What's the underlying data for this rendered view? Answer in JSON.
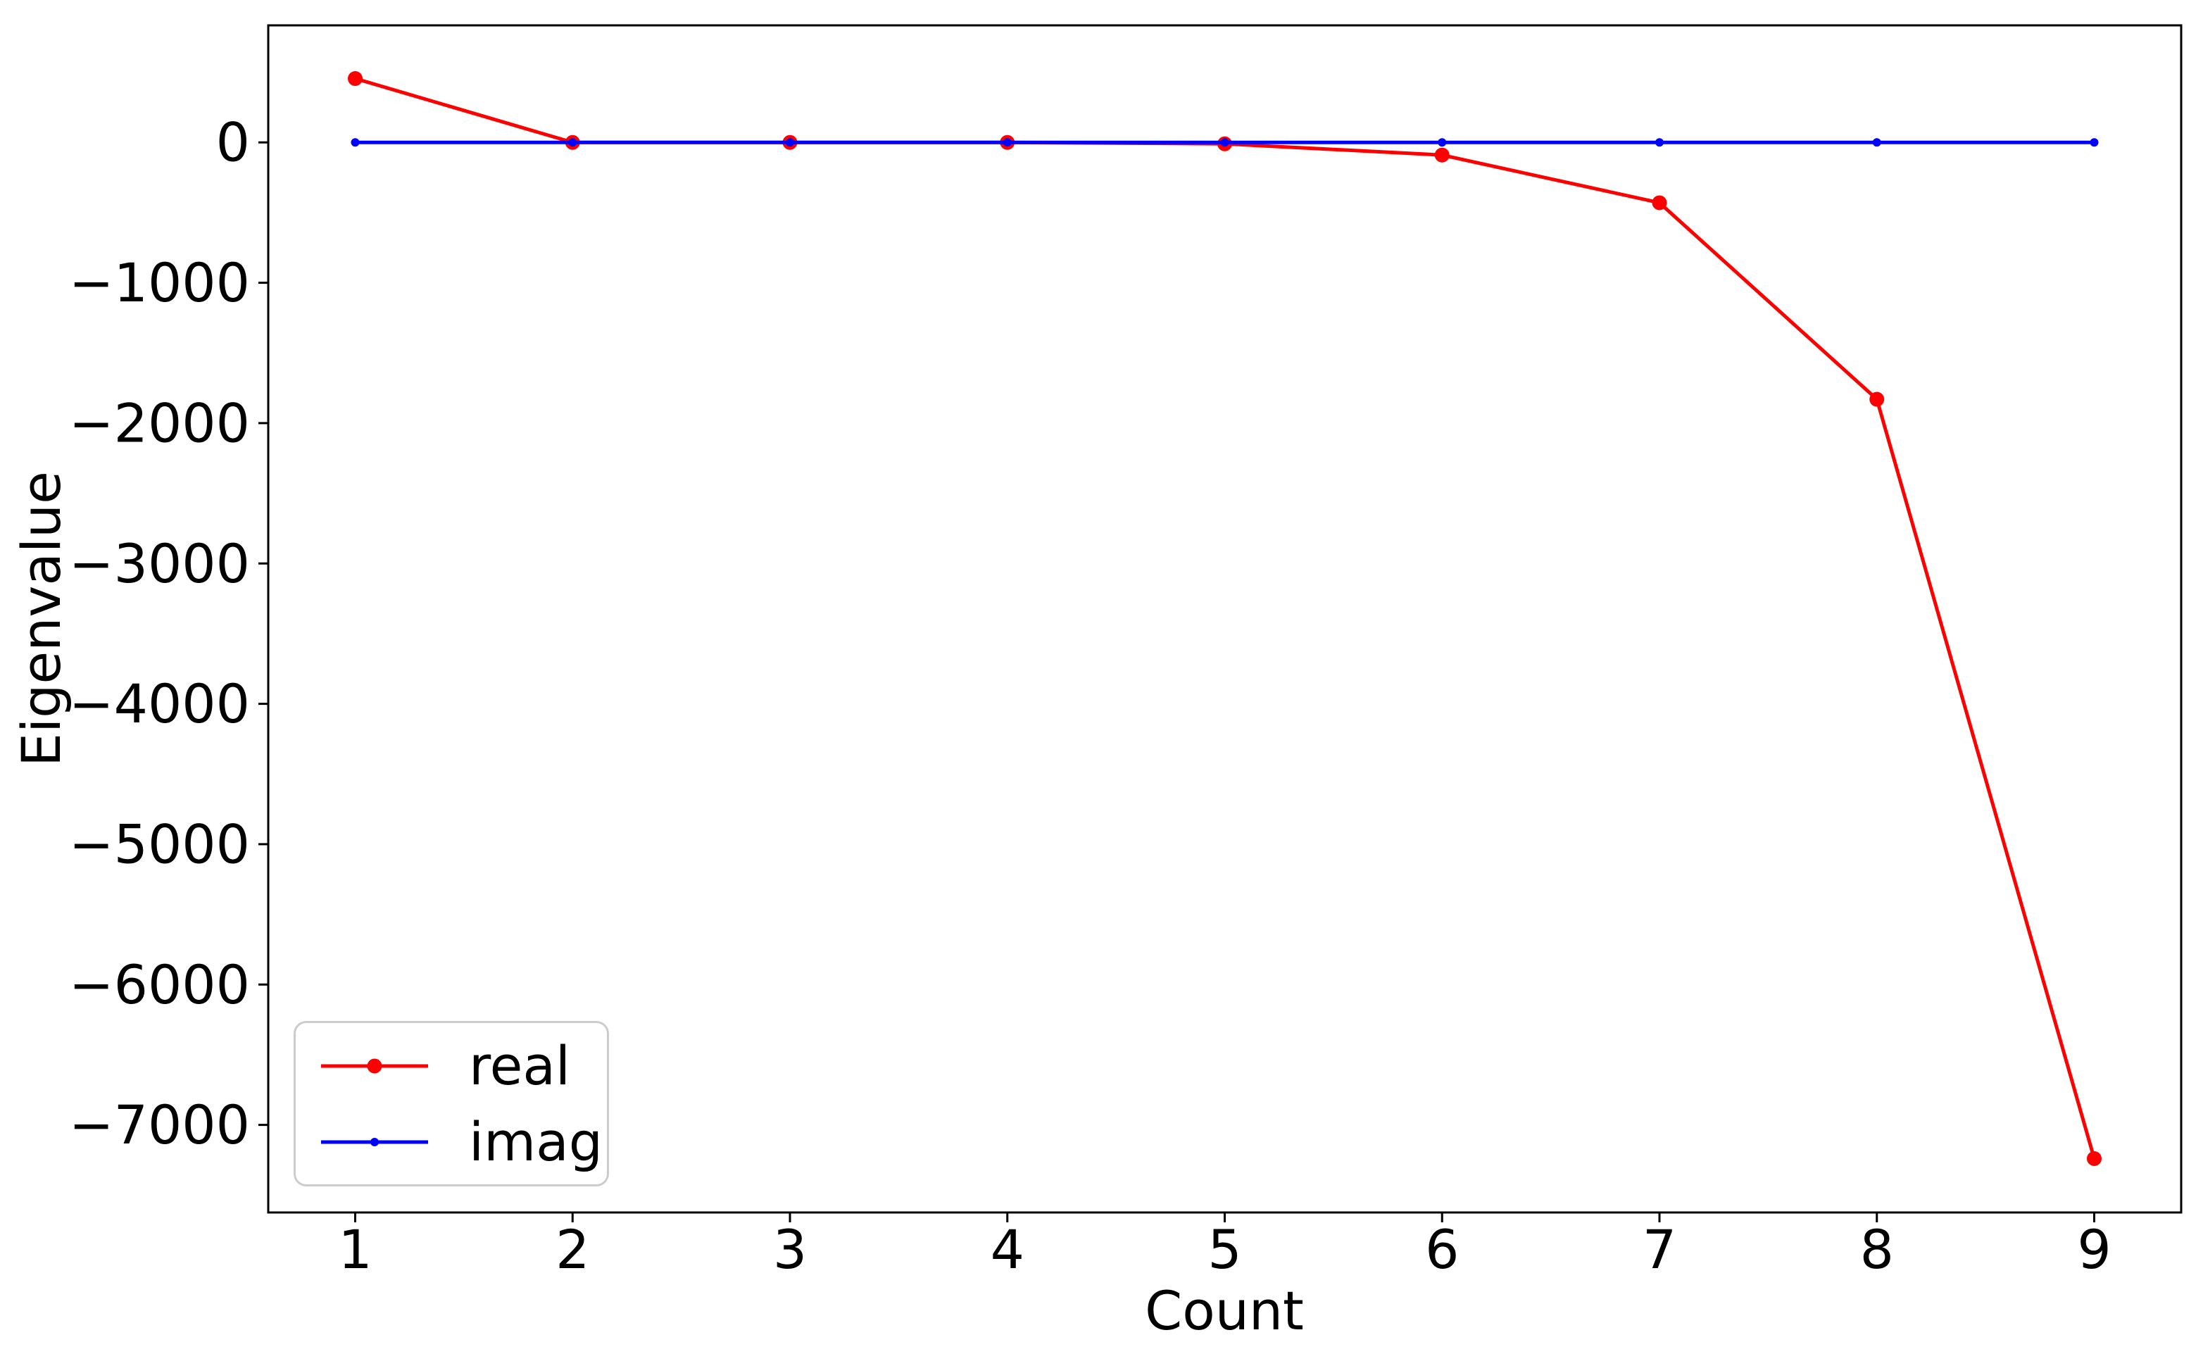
{
  "figure": {
    "background_color": "#ffffff",
    "axis_color": "#000000"
  },
  "chart_data": {
    "type": "line",
    "title": "",
    "xlabel": "Count",
    "ylabel": "Eigenvalue",
    "x": [
      1,
      2,
      3,
      4,
      5,
      6,
      7,
      8,
      9
    ],
    "series": [
      {
        "name": "real",
        "color": "#ff0000",
        "line_width": 5,
        "marker": "circle",
        "marker_diameter": 21,
        "values": [
          455,
          0,
          0,
          0,
          -10,
          -90,
          -430,
          -1830,
          -7240
        ]
      },
      {
        "name": "imag",
        "color": "#0000ff",
        "line_width": 5,
        "marker": "circle",
        "marker_diameter": 12,
        "values": [
          0,
          0,
          0,
          0,
          0,
          0,
          0,
          0,
          0
        ]
      }
    ],
    "x_ticks": [
      {
        "value": 1,
        "label": "1"
      },
      {
        "value": 2,
        "label": "2"
      },
      {
        "value": 3,
        "label": "3"
      },
      {
        "value": 4,
        "label": "4"
      },
      {
        "value": 5,
        "label": "5"
      },
      {
        "value": 6,
        "label": "6"
      },
      {
        "value": 7,
        "label": "7"
      },
      {
        "value": 8,
        "label": "8"
      },
      {
        "value": 9,
        "label": "9"
      }
    ],
    "y_ticks": [
      {
        "value": 0,
        "label": "0"
      },
      {
        "value": -1000,
        "label": "−1000"
      },
      {
        "value": -2000,
        "label": "−2000"
      },
      {
        "value": -3000,
        "label": "−3000"
      },
      {
        "value": -4000,
        "label": "−4000"
      },
      {
        "value": -5000,
        "label": "−5000"
      },
      {
        "value": -6000,
        "label": "−6000"
      },
      {
        "value": -7000,
        "label": "−7000"
      }
    ],
    "xlim": [
      0.6,
      9.4
    ],
    "ylim": [
      -7624,
      834
    ],
    "grid": false,
    "legend": {
      "position": "lower left",
      "border_color": "#cccccc",
      "background": "#ffffff",
      "entries": [
        "real",
        "imag"
      ]
    }
  }
}
